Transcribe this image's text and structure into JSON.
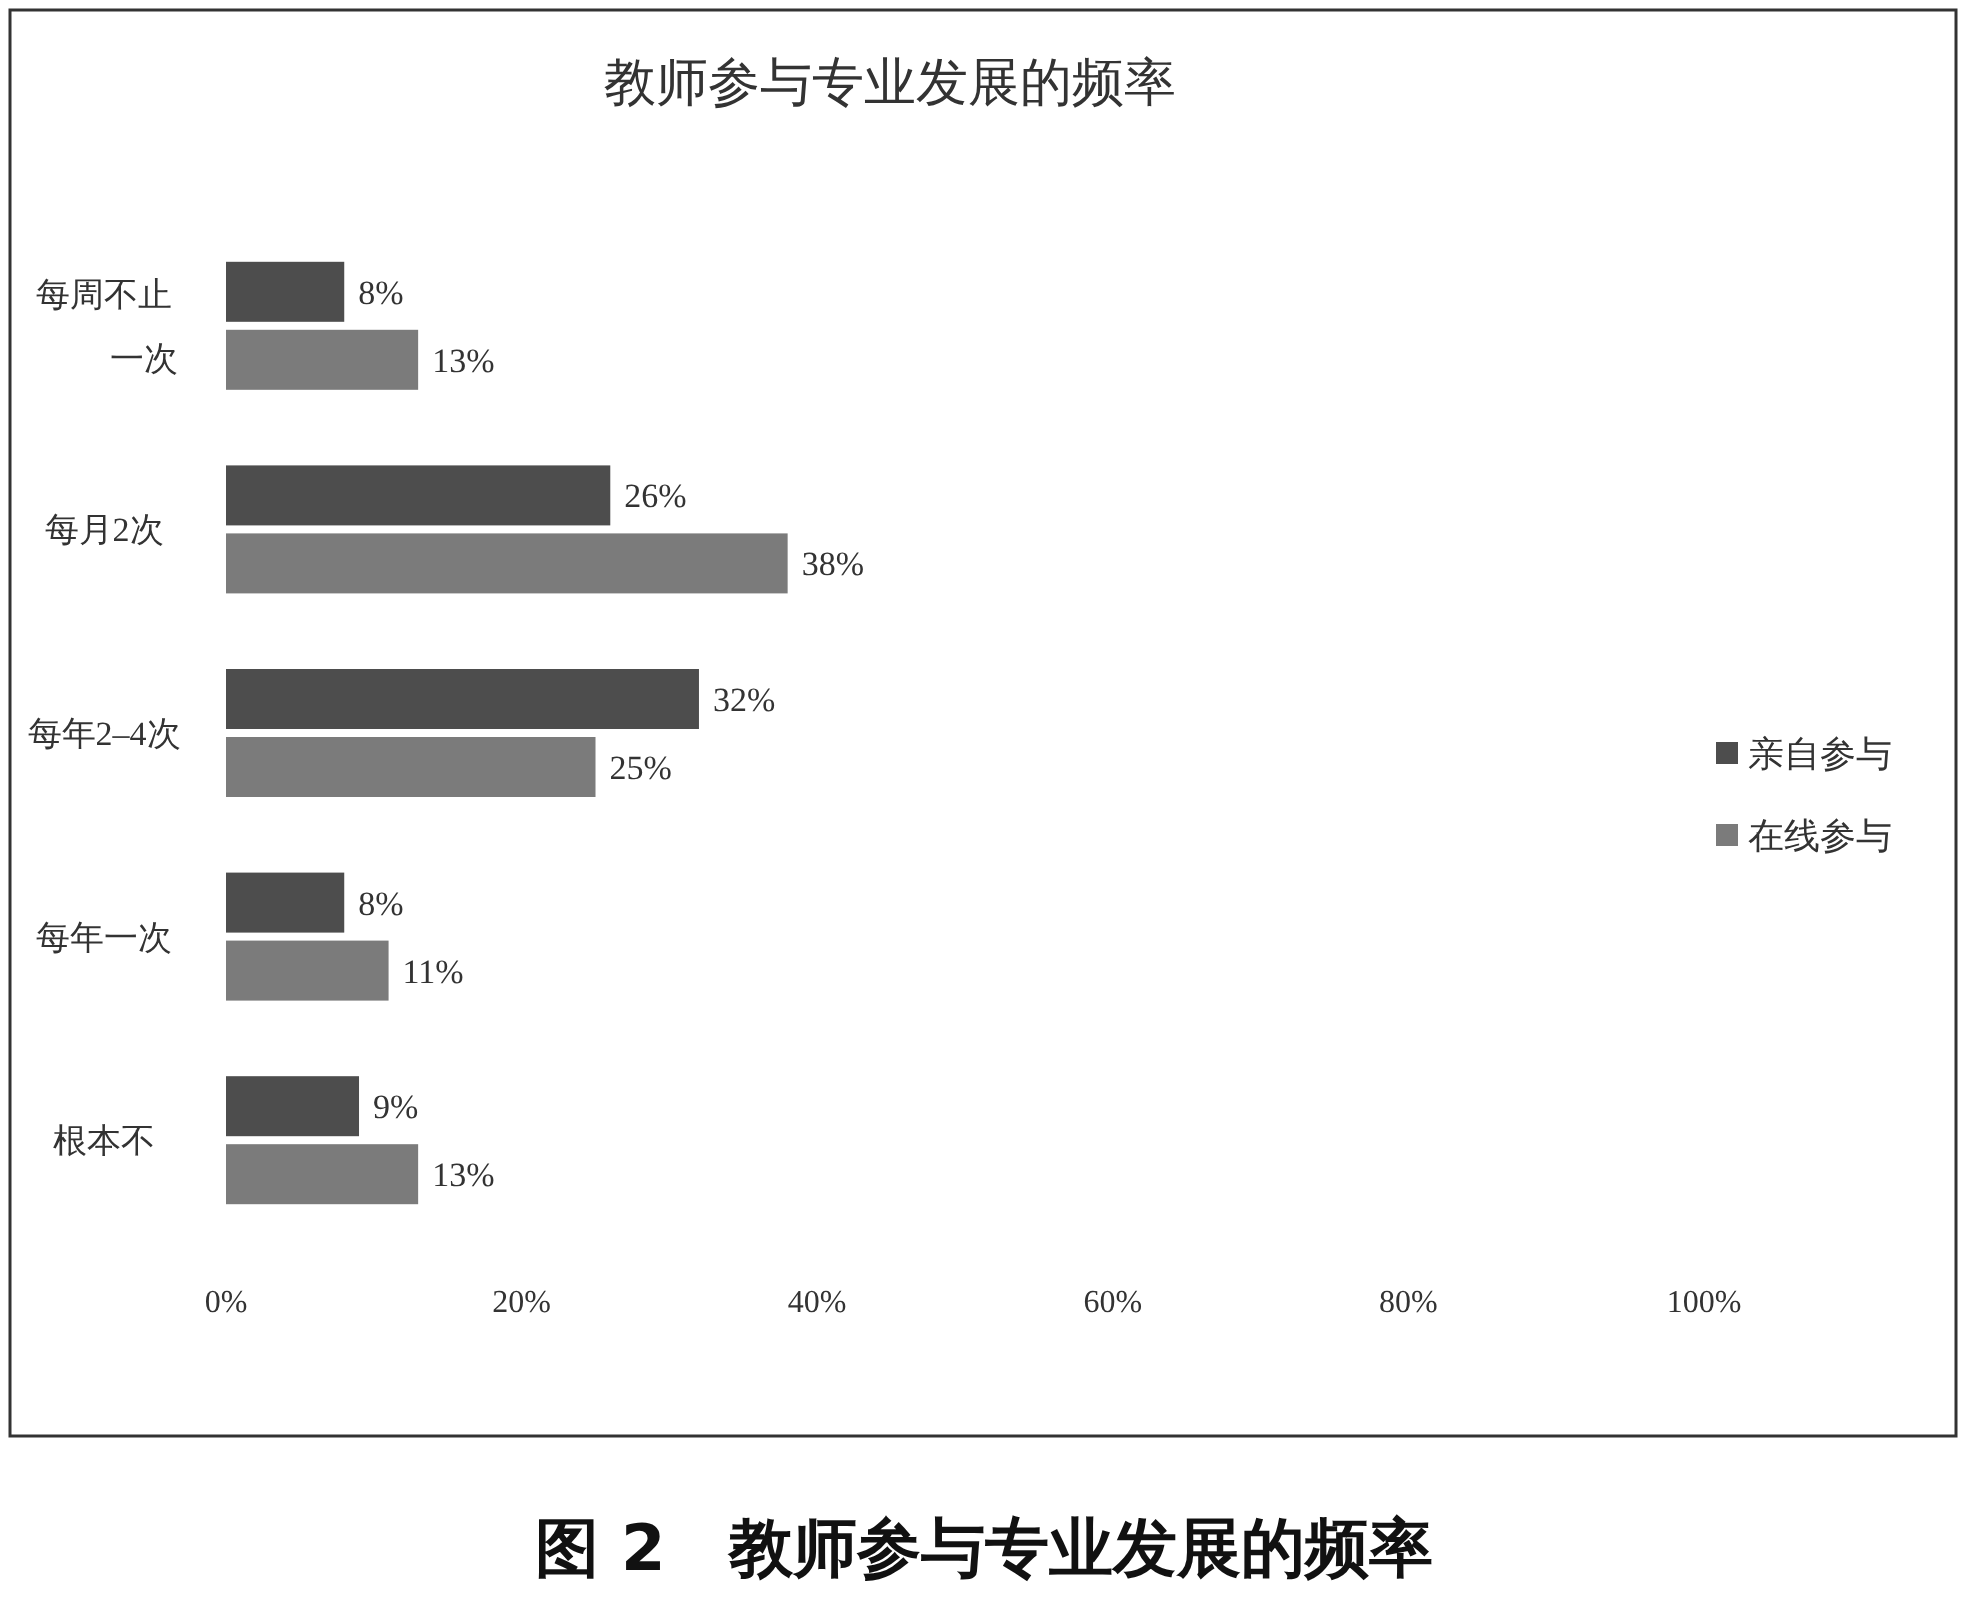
{
  "chart_data": {
    "type": "bar",
    "orientation": "horizontal",
    "title": "教师参与专业发展的频率",
    "categories": [
      "每周不止一次",
      "每月2次",
      "每年2–4次",
      "每年一次",
      "根本不"
    ],
    "series": [
      {
        "name": "亲自参与",
        "color": "#4d4d4d",
        "values": [
          8,
          26,
          32,
          8,
          9
        ],
        "value_labels": [
          "8%",
          "26%",
          "32%",
          "8%",
          "9%"
        ]
      },
      {
        "name": "在线参与",
        "color": "#7b7b7b",
        "values": [
          13,
          38,
          25,
          11,
          13
        ],
        "value_labels": [
          "13%",
          "38%",
          "25%",
          "11%",
          "13%"
        ]
      }
    ],
    "xlim": [
      0,
      100
    ],
    "xticks": [
      {
        "value": 0,
        "label": "0%"
      },
      {
        "value": 20,
        "label": "20%"
      },
      {
        "value": 40,
        "label": "40%"
      },
      {
        "value": 60,
        "label": "60%"
      },
      {
        "value": 80,
        "label": "80%"
      },
      {
        "value": 100,
        "label": "100%"
      }
    ],
    "grid": false,
    "legend": "right",
    "annotations": [
      "图 2　教师参与专业发展的频率"
    ]
  }
}
